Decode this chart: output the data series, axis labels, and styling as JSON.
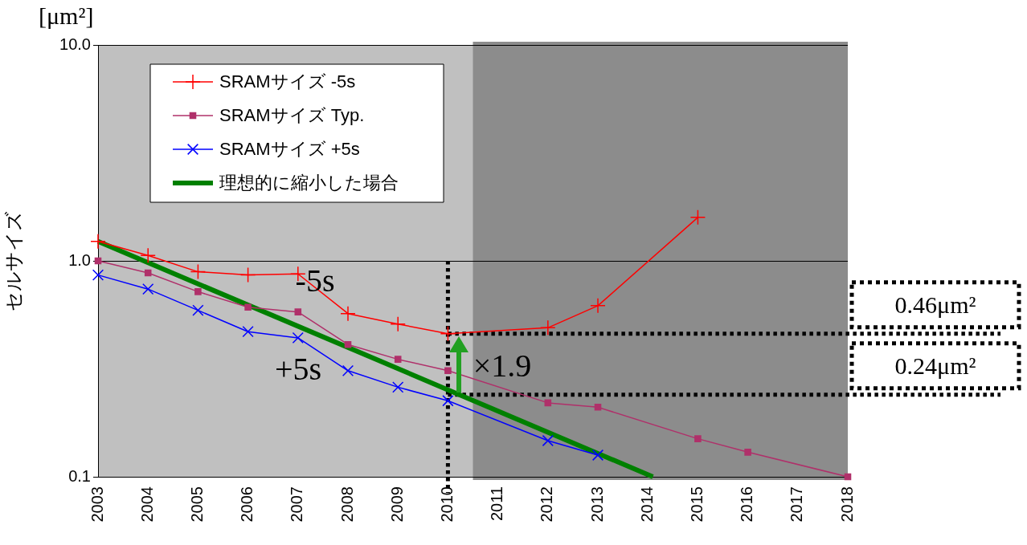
{
  "chart_data": {
    "type": "line",
    "ylabel": "セルサイズ",
    "log": "y",
    "grid": "y",
    "legend": "top left",
    "xlim": [
      2003,
      2018
    ],
    "xticks": [
      2003,
      2004,
      2005,
      2006,
      2007,
      2008,
      2009,
      2010,
      2011,
      2012,
      2013,
      2014,
      2015,
      2016,
      2017,
      2018
    ],
    "ylim": [
      0.1,
      10
    ],
    "yticks": [
      {
        "value": 0.1,
        "label": "0.1"
      },
      {
        "value": 1,
        "label": "1.0"
      },
      {
        "value": 10,
        "label": "10.0"
      }
    ],
    "series": [
      {
        "name": "SRAMサイズ -5s",
        "color": "#ff0000",
        "marker": "cross",
        "x": [
          2003,
          2004,
          2005,
          2006,
          2007,
          2008,
          2009,
          2010,
          2012,
          2013,
          2015
        ],
        "values": [
          1.23,
          1.06,
          0.89,
          0.86,
          0.87,
          0.57,
          0.51,
          0.46,
          0.49,
          0.62,
          1.59
        ]
      },
      {
        "name": "SRAMサイズ Typ.",
        "color": "#b0306a",
        "marker": "square",
        "x": [
          2003,
          2004,
          2005,
          2006,
          2007,
          2008,
          2009,
          2010,
          2012,
          2013,
          2015,
          2016,
          2018
        ],
        "values": [
          1.0,
          0.88,
          0.72,
          0.61,
          0.58,
          0.41,
          0.35,
          0.31,
          0.22,
          0.21,
          0.15,
          0.13,
          0.1
        ]
      },
      {
        "name": "SRAMサイズ +5s",
        "color": "#0000ff",
        "marker": "x",
        "x": [
          2003,
          2004,
          2005,
          2006,
          2007,
          2008,
          2009,
          2010,
          2012,
          2013
        ],
        "values": [
          0.86,
          0.74,
          0.59,
          0.47,
          0.44,
          0.31,
          0.26,
          0.225,
          0.147,
          0.126
        ]
      },
      {
        "name": "理想的に縮小した場合",
        "color": "#008000",
        "marker": "none",
        "x": [
          2003,
          2014.1
        ],
        "values": [
          1.23,
          0.1
        ]
      }
    ],
    "ref_lines": [
      {
        "axis": "x",
        "value": 2010,
        "line_style": "dotted",
        "color": "#000000"
      },
      {
        "axis": "y",
        "value": 0.46,
        "label": "0.46μm²",
        "line_style": "dotted",
        "color": "#000000"
      },
      {
        "axis": "y",
        "value": 0.24,
        "label": "0.24μm²",
        "line_style": "dotted",
        "color": "#000000"
      }
    ],
    "bands": [
      {
        "axis": "x",
        "from": 2010.5,
        "to": 2018,
        "color": "#8c8c8c"
      }
    ],
    "annotations": [
      "[μm²]",
      "-5s",
      "+5s",
      "×1.9"
    ]
  }
}
